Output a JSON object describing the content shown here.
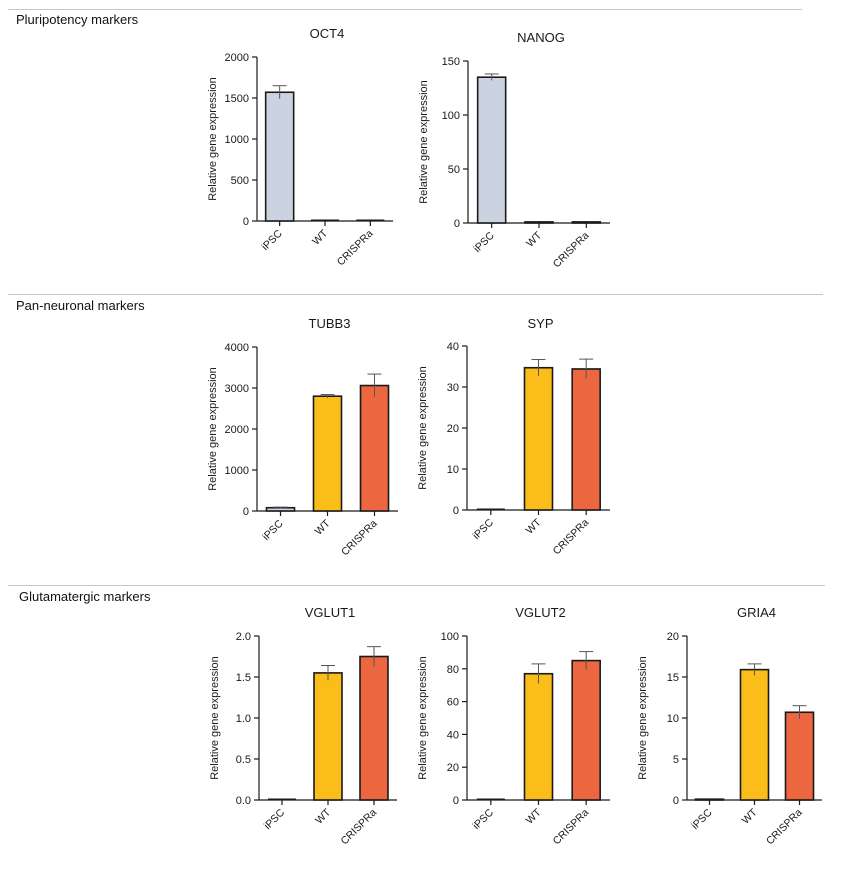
{
  "sections": [
    {
      "title": "Pluripotency markers"
    },
    {
      "title": "Pan-neuronal markers"
    },
    {
      "title": "Glutamatergic markers"
    }
  ],
  "colors": {
    "iPSC": "#ccd3e0",
    "WT": "#fbbd1a",
    "CRISPRa": "#ec6640",
    "outline": "#1a1a1a",
    "errorbar": "#555555"
  },
  "chart_data": [
    {
      "type": "bar",
      "section": 0,
      "title": "OCT4",
      "ylabel": "Relative gene expression",
      "categories": [
        "iPSC",
        "WT",
        "CRISPRa"
      ],
      "values": [
        1570,
        0,
        0
      ],
      "errors": [
        80,
        0,
        0
      ],
      "ylim": [
        0,
        2000
      ],
      "yticks": [
        "0",
        "500",
        "1000",
        "1500",
        "2000"
      ],
      "ytick_values": [
        0,
        500,
        1000,
        1500,
        2000
      ]
    },
    {
      "type": "bar",
      "section": 0,
      "title": "NANOG",
      "ylabel": "Relative gene expression",
      "categories": [
        "iPSC",
        "WT",
        "CRISPRa"
      ],
      "values": [
        135,
        1,
        1
      ],
      "errors": [
        3,
        0,
        0
      ],
      "ylim": [
        0,
        150
      ],
      "yticks": [
        "0",
        "50",
        "100",
        "150"
      ],
      "ytick_values": [
        0,
        50,
        100,
        150
      ]
    },
    {
      "type": "bar",
      "section": 1,
      "title": "TUBB3",
      "ylabel": "Relative gene expression",
      "categories": [
        "iPSC",
        "WT",
        "CRISPRa"
      ],
      "values": [
        80,
        2800,
        3060
      ],
      "errors": [
        15,
        40,
        280
      ],
      "ylim": [
        0,
        4000
      ],
      "yticks": [
        "0",
        "1000",
        "2000",
        "3000",
        "4000"
      ],
      "ytick_values": [
        0,
        1000,
        2000,
        3000,
        4000
      ]
    },
    {
      "type": "bar",
      "section": 1,
      "title": "SYP",
      "ylabel": "Relative gene expression",
      "categories": [
        "iPSC",
        "WT",
        "CRISPRa"
      ],
      "values": [
        0,
        34.7,
        34.4
      ],
      "errors": [
        0,
        2,
        2.4
      ],
      "ylim": [
        0,
        40
      ],
      "yticks": [
        "0",
        "10",
        "20",
        "30",
        "40"
      ],
      "ytick_values": [
        0,
        10,
        20,
        30,
        40
      ]
    },
    {
      "type": "bar",
      "section": 2,
      "title": "VGLUT1",
      "ylabel": "Relative gene expression",
      "categories": [
        "iPSC",
        "WT",
        "CRISPRa"
      ],
      "values": [
        0,
        1.55,
        1.75
      ],
      "errors": [
        0,
        0.09,
        0.12
      ],
      "ylim": [
        0,
        2.0
      ],
      "yticks": [
        "0.0",
        "0.5",
        "1.0",
        "1.5",
        "2.0"
      ],
      "ytick_values": [
        0,
        0.5,
        1.0,
        1.5,
        2.0
      ]
    },
    {
      "type": "bar",
      "section": 2,
      "title": "VGLUT2",
      "ylabel": "Relative gene expression",
      "categories": [
        "iPSC",
        "WT",
        "CRISPRa"
      ],
      "values": [
        0,
        77,
        85
      ],
      "errors": [
        0,
        6,
        5.5
      ],
      "ylim": [
        0,
        100
      ],
      "yticks": [
        "0",
        "20",
        "40",
        "60",
        "80",
        "100"
      ],
      "ytick_values": [
        0,
        20,
        40,
        60,
        80,
        100
      ]
    },
    {
      "type": "bar",
      "section": 2,
      "title": "GRIA4",
      "ylabel": "Relative gene expression",
      "categories": [
        "iPSC",
        "WT",
        "CRISPRa"
      ],
      "values": [
        0.1,
        15.9,
        10.7
      ],
      "errors": [
        0.05,
        0.7,
        0.8
      ],
      "ylim": [
        0,
        20
      ],
      "yticks": [
        "0",
        "5",
        "10",
        "15",
        "20"
      ],
      "ytick_values": [
        0,
        5,
        10,
        15,
        20
      ]
    }
  ]
}
